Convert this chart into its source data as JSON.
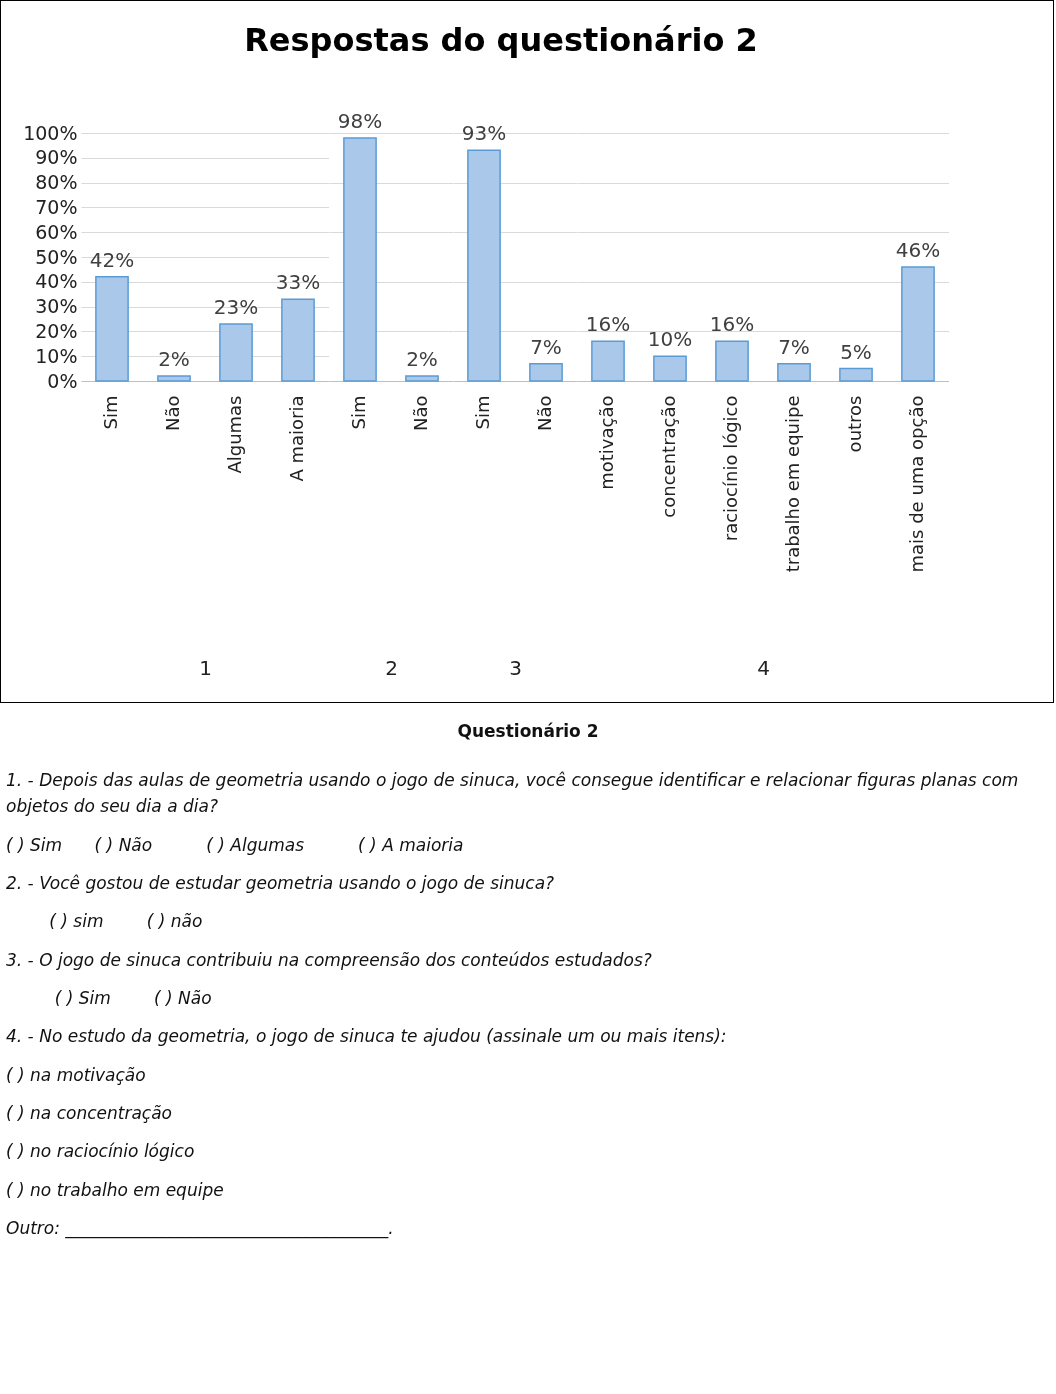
{
  "chart_data": [
    {
      "type": "bar",
      "title": "Respostas do questionário 2",
      "xlabel": "1",
      "categories": [
        "Sim",
        "Não",
        "Algumas",
        "A maioria"
      ],
      "values": [
        42,
        2,
        23,
        33
      ],
      "value_labels": [
        "42%",
        "2%",
        "23%",
        "33%"
      ],
      "color": "#a9c8ea",
      "ylim": [
        0,
        100
      ],
      "yticks": [
        {
          "value": 0,
          "label": "0%"
        },
        {
          "value": 10,
          "label": "10%"
        },
        {
          "value": 20,
          "label": "20%"
        },
        {
          "value": 30,
          "label": "30%"
        },
        {
          "value": 40,
          "label": "40%"
        },
        {
          "value": 50,
          "label": "50%"
        },
        {
          "value": 60,
          "label": "60%"
        },
        {
          "value": 70,
          "label": "70%"
        },
        {
          "value": 80,
          "label": "80%"
        },
        {
          "value": 90,
          "label": "90%"
        },
        {
          "value": 100,
          "label": "100%"
        }
      ],
      "grid": "y"
    },
    {
      "type": "bar",
      "xlabel": "2",
      "categories": [
        "Sim",
        "Não"
      ],
      "values": [
        98,
        2
      ],
      "value_labels": [
        "98%",
        "2%"
      ],
      "color": "#a9c8ea",
      "ylim": [
        0,
        100
      ],
      "tick_labels": "x",
      "grid": "y"
    },
    {
      "type": "bar",
      "xlabel": "3",
      "categories": [
        "Sim",
        "Não"
      ],
      "values": [
        93,
        7
      ],
      "value_labels": [
        "93%",
        "7%"
      ],
      "color": "#a9c8ea",
      "ylim": [
        0,
        100
      ],
      "tick_labels": "x",
      "grid": "y"
    },
    {
      "type": "bar",
      "xlabel": "4",
      "categories": [
        "motivação",
        "concentração",
        "raciocínio lógico",
        "trabalho em equipe",
        "outros",
        "mais de uma opção"
      ],
      "values": [
        16,
        10,
        16,
        7,
        5,
        46
      ],
      "value_labels": [
        "16%",
        "10%",
        "16%",
        "7%",
        "5%",
        "46%"
      ],
      "color": "#a9c8ea",
      "ylim": [
        0,
        100
      ],
      "tick_labels": "x",
      "grid": "y"
    },
    {
      "type": "other",
      "title": "Questionário 2",
      "annotations": [
        "1. - Depois das aulas de geometria usando o jogo de sinuca, você consegue identificar e relacionar figuras planas com objetos do seu dia a dia?",
        "( ) Sim      ( ) Não          ( ) Algumas          ( ) A maioria",
        "2. - Você gostou de estudar geometria usando o jogo de sinuca?",
        "        ( ) sim        ( ) não",
        "3. - O jogo de sinuca contribuiu na compreensão dos conteúdos estudados?",
        "         ( ) Sim        ( ) Não",
        "4. - No estudo da geometria, o jogo de sinuca te ajudou (assinale um ou mais itens):",
        "( ) na motivação",
        "( ) na concentração",
        "( ) no raciocínio lógico",
        "( ) no trabalho em equipe",
        "Outro: ______________________________________."
      ]
    }
  ]
}
